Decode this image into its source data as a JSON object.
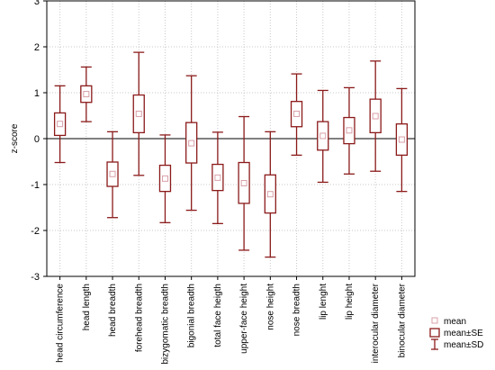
{
  "chart_data": {
    "type": "boxplot",
    "ylabel": "z-score",
    "ylim": [
      -3,
      3
    ],
    "yticks": [
      -3,
      -2,
      -1,
      0,
      1,
      2,
      3
    ],
    "grid": true,
    "reference_line": 0,
    "legend_position": "bottom-right",
    "colors": {
      "box": "#8b1a1a",
      "mean_marker": "#d8a0a8",
      "grid": "#c8c8c8",
      "zero_line": "#000000"
    },
    "legend": {
      "mean": "mean",
      "se": "mean±SE",
      "sd": "mean±SD"
    },
    "categories": [
      "head circumference",
      "head length",
      "head breadth",
      "forehead breadth",
      "bizygomatic breadth",
      "bigonial breadth",
      "total face heigth",
      "upper-face height",
      "nose height",
      "nose breadth",
      "lip lenght",
      "lip height",
      "interocular diameter",
      "binocular diameter"
    ],
    "mean": [
      0.32,
      0.97,
      -0.77,
      0.54,
      -0.87,
      -0.1,
      -0.85,
      -0.97,
      -1.21,
      0.54,
      0.06,
      0.18,
      0.49,
      -0.02
    ],
    "se_low": [
      0.07,
      0.79,
      -1.04,
      0.13,
      -1.15,
      -0.53,
      -1.13,
      -1.41,
      -1.62,
      0.26,
      -0.25,
      -0.11,
      0.13,
      -0.36
    ],
    "se_high": [
      0.56,
      1.15,
      -0.51,
      0.95,
      -0.58,
      0.35,
      -0.56,
      -0.52,
      -0.79,
      0.81,
      0.37,
      0.46,
      0.86,
      0.32
    ],
    "sd_low": [
      -0.52,
      0.37,
      -1.72,
      -0.8,
      -1.83,
      -1.56,
      -1.85,
      -2.43,
      -2.58,
      -0.36,
      -0.95,
      -0.77,
      -0.71,
      -1.15
    ],
    "sd_high": [
      1.15,
      1.56,
      0.15,
      1.88,
      0.08,
      1.37,
      0.14,
      0.48,
      0.15,
      1.41,
      1.05,
      1.11,
      1.69,
      1.09
    ]
  }
}
